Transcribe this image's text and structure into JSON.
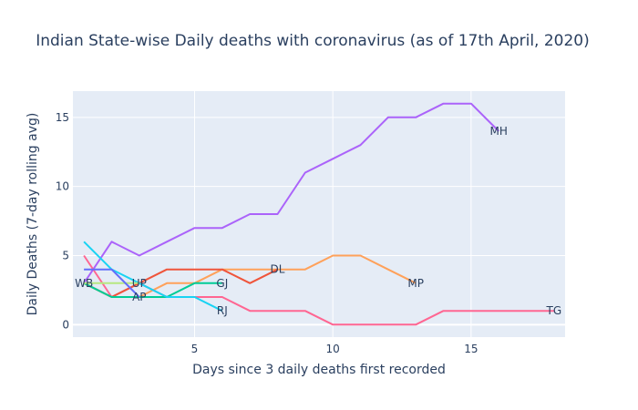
{
  "chart_data": {
    "type": "line",
    "title": "Indian State-wise Daily deaths with coronavirus (as of 17th April, 2020)",
    "xlabel": "Days since 3 daily deaths first recorded",
    "ylabel": "Daily Deaths (7-day rolling avg)",
    "xlim": [
      0.6,
      18.4
    ],
    "ylim": [
      -0.9,
      16.9
    ],
    "xticks": [
      5,
      10,
      15
    ],
    "yticks": [
      0,
      5,
      10,
      15
    ],
    "grid": true,
    "legend": "none",
    "series": [
      {
        "name": "MH",
        "color": "#ab63fa",
        "x": [
          1,
          2,
          3,
          4,
          5,
          6,
          7,
          8,
          9,
          10,
          11,
          12,
          13,
          14,
          15,
          16
        ],
        "y": [
          3,
          6,
          5,
          6,
          7,
          7,
          8,
          8,
          11,
          12,
          13,
          15,
          15,
          16,
          16,
          14
        ]
      },
      {
        "name": "MP",
        "color": "#ffa15a",
        "x": [
          1,
          2,
          3,
          4,
          5,
          6,
          7,
          8,
          9,
          10,
          11,
          12,
          13
        ],
        "y": [
          3,
          2,
          2,
          3,
          3,
          4,
          4,
          4,
          4,
          5,
          5,
          4,
          3
        ]
      },
      {
        "name": "TG",
        "color": "#ff6692",
        "x": [
          1,
          2,
          3,
          4,
          5,
          6,
          7,
          8,
          9,
          10,
          11,
          12,
          13,
          14,
          15,
          16,
          17,
          18
        ],
        "y": [
          5,
          2,
          3,
          2,
          2,
          2,
          1,
          1,
          1,
          0,
          0,
          0,
          0,
          1,
          1,
          1,
          1,
          1
        ]
      },
      {
        "name": "DL",
        "color": "#ef553b",
        "x": [
          1,
          2,
          3,
          4,
          5,
          6,
          7,
          8
        ],
        "y": [
          3,
          2,
          3,
          4,
          4,
          4,
          3,
          4
        ]
      },
      {
        "name": "GJ",
        "color": "#00cc96",
        "x": [
          1,
          2,
          3,
          4,
          5,
          6
        ],
        "y": [
          3,
          2,
          2,
          2,
          3,
          3
        ]
      },
      {
        "name": "RJ",
        "color": "#19d3f3",
        "x": [
          1,
          2,
          3,
          4,
          5,
          6
        ],
        "y": [
          6,
          4,
          3,
          2,
          2,
          1
        ]
      },
      {
        "name": "UP",
        "color": "#b6e880",
        "x": [
          1,
          2,
          3
        ],
        "y": [
          3,
          3,
          3
        ]
      },
      {
        "name": "AP",
        "color": "#636efa",
        "x": [
          1,
          2,
          3
        ],
        "y": [
          4,
          4,
          2
        ]
      },
      {
        "name": "WB",
        "color": "#fecb52",
        "x": [
          1
        ],
        "y": [
          3
        ]
      }
    ]
  }
}
